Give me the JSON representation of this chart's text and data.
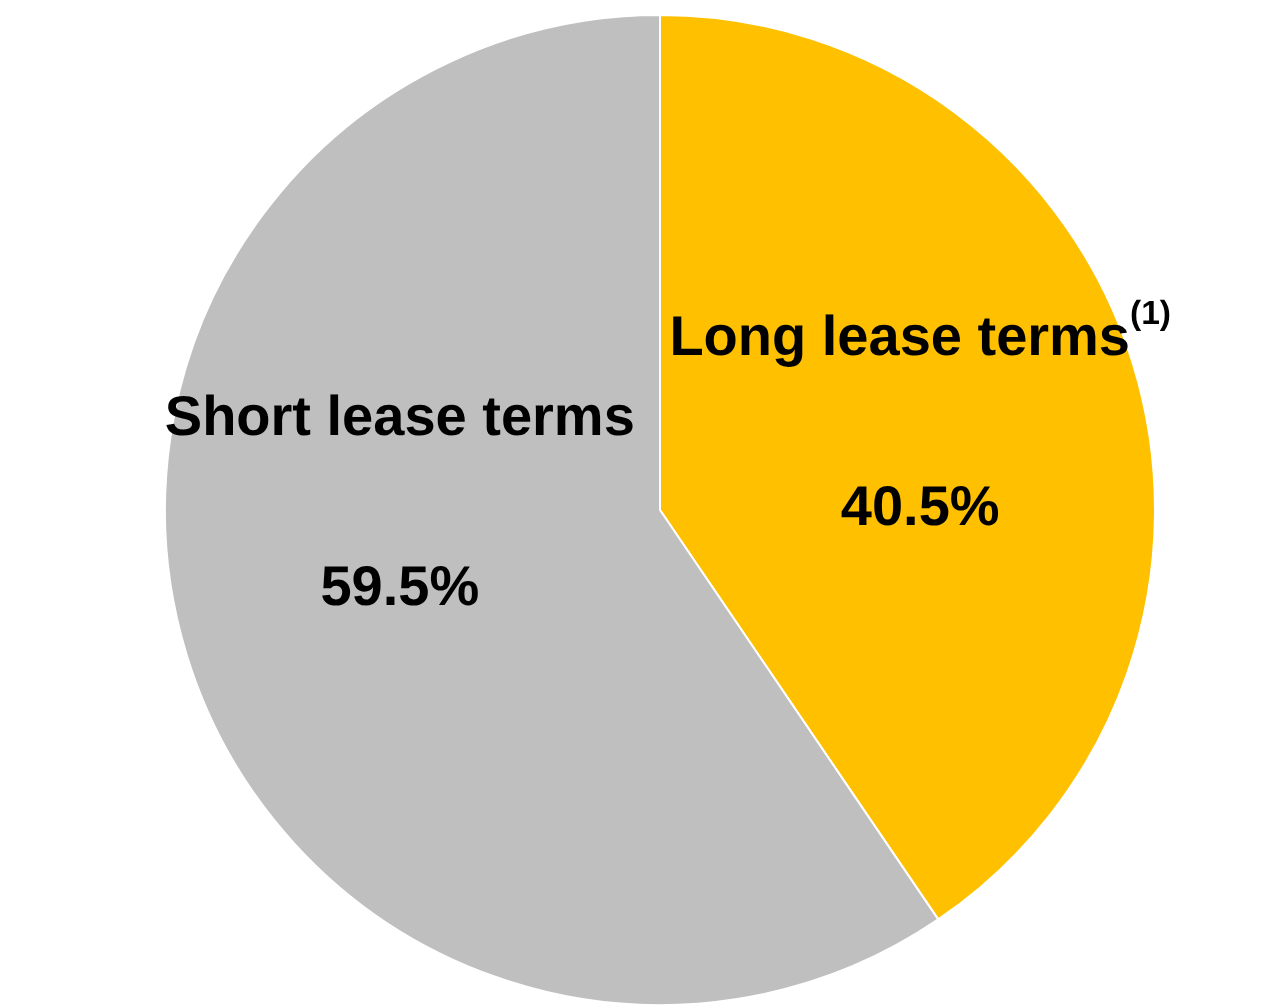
{
  "chart_data": {
    "type": "pie",
    "categories": [
      "Long lease terms$^{(1)}$",
      "Short lease terms"
    ],
    "values": [
      40.5,
      59.5
    ],
    "colors": [
      "#ffc000",
      "#bfbfbf"
    ],
    "value_labels": [
      "40.5%",
      "59.5%"
    ],
    "legend": false
  }
}
